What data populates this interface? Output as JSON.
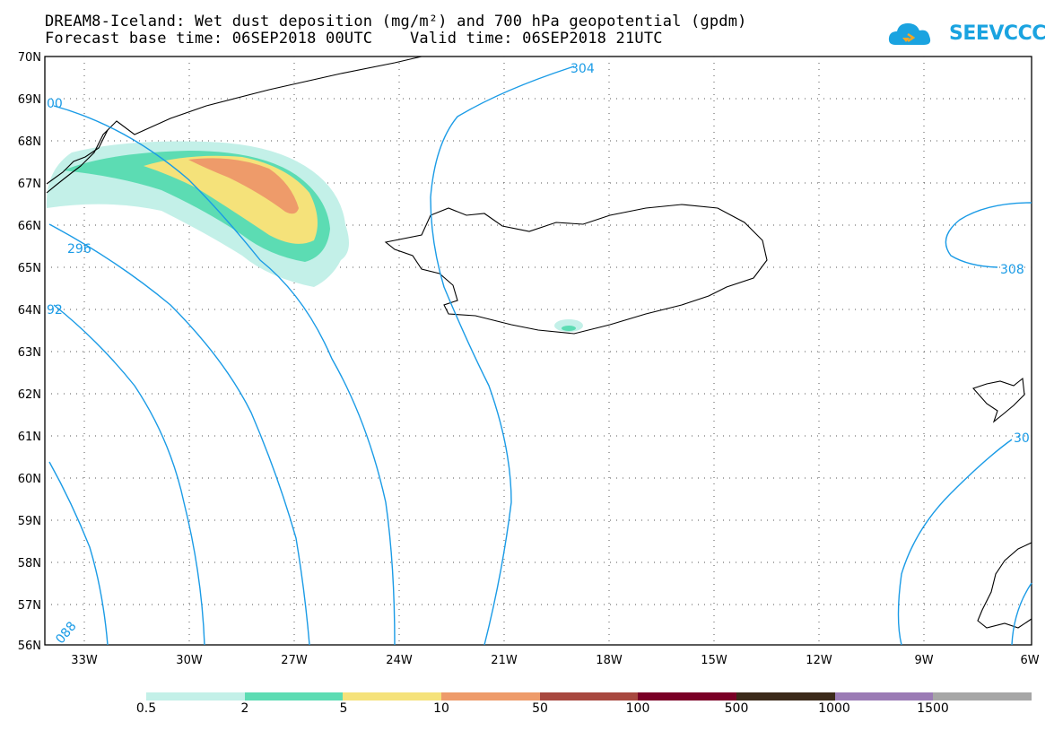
{
  "title": {
    "line1": "DREAM8-Iceland: Wet dust deposition (mg/m²) and 700 hPa geopotential (gpdm)",
    "line2": "Forecast base time: 06SEP2018 00UTC    Valid time: 06SEP2018 21UTC"
  },
  "logo": {
    "text": "SEEVCCC",
    "icon": "cloud-icon"
  },
  "map": {
    "lat_labels": [
      "70N",
      "69N",
      "68N",
      "67N",
      "66N",
      "65N",
      "64N",
      "63N",
      "62N",
      "61N",
      "60N",
      "59N",
      "58N",
      "57N",
      "56N"
    ],
    "lon_labels": [
      "33W",
      "30W",
      "27W",
      "24W",
      "21W",
      "18W",
      "15W",
      "12W",
      "9W",
      "6W"
    ],
    "contour_labels": [
      "304",
      "296",
      "308",
      "92",
      "00",
      "088",
      "30"
    ],
    "contour_color": "#1a9be6"
  },
  "legend": {
    "labels": [
      "0.5",
      "2",
      "5",
      "10",
      "50",
      "100",
      "500",
      "1000",
      "1500"
    ],
    "colors": [
      "#c3f0e8",
      "#5cdcb3",
      "#f5e27a",
      "#ee9b6a",
      "#a8483f",
      "#7a0026",
      "#3c2a1a",
      "#9b7bb5",
      "#a6a6a6"
    ]
  }
}
